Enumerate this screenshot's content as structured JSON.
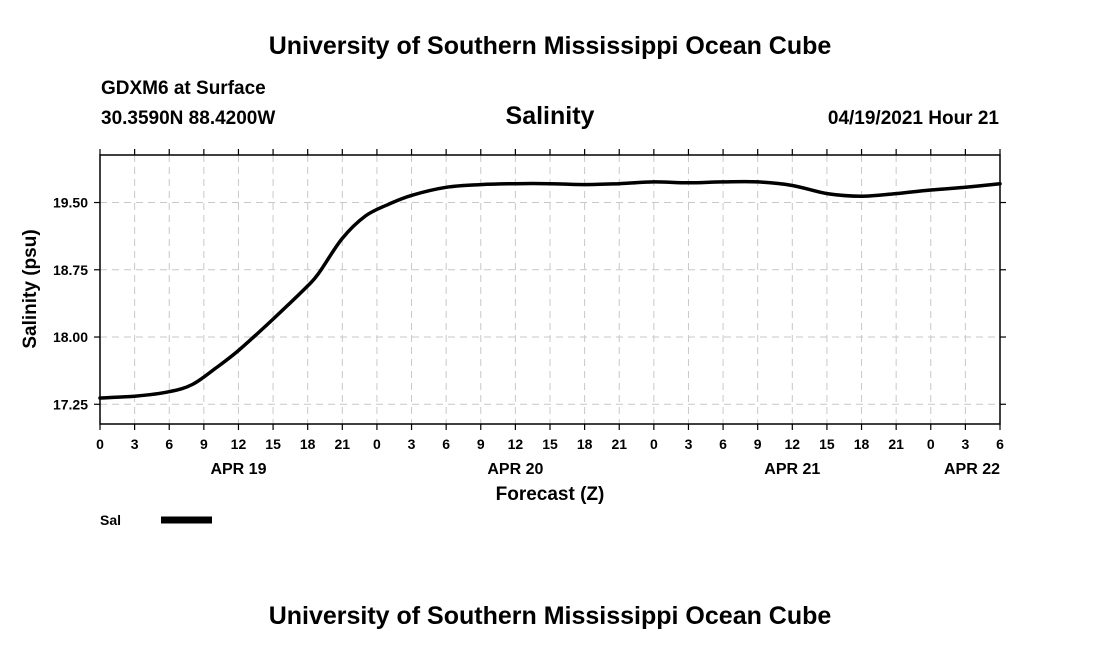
{
  "header": {
    "top_title": "University of Southern Mississippi Ocean Cube",
    "station": "GDXM6 at Surface",
    "coords": "30.3590N  88.4200W",
    "datetime": "04/19/2021 Hour 21",
    "bottom_title": "University of Southern Mississippi Ocean Cube"
  },
  "chart_data": {
    "type": "line",
    "title": "Salinity",
    "xlabel": "Forecast (Z)",
    "ylabel": "Salinity (psu)",
    "xlim": [
      0,
      78
    ],
    "ylim": [
      17.03,
      20.03
    ],
    "y_ticks": [
      17.25,
      18.0,
      18.75,
      19.5
    ],
    "y_tick_labels": [
      "17.25",
      "18.00",
      "18.75",
      "19.50"
    ],
    "x_ticks": [
      0,
      3,
      6,
      9,
      12,
      15,
      18,
      21,
      24,
      27,
      30,
      33,
      36,
      39,
      42,
      45,
      48,
      51,
      54,
      57,
      60,
      63,
      66,
      69,
      72,
      75,
      78
    ],
    "x_tick_labels": [
      "0",
      "3",
      "6",
      "9",
      "12",
      "15",
      "18",
      "21",
      "0",
      "3",
      "6",
      "9",
      "12",
      "15",
      "18",
      "21",
      "0",
      "3",
      "6",
      "9",
      "12",
      "15",
      "18",
      "21",
      "0",
      "3",
      "6"
    ],
    "day_labels": [
      {
        "x": 12,
        "label": "APR 19"
      },
      {
        "x": 36,
        "label": "APR 20"
      },
      {
        "x": 60,
        "label": "APR 21"
      },
      {
        "x": 78,
        "label": "APR 22"
      }
    ],
    "grid": true,
    "legend_position": "bottom-left",
    "series": [
      {
        "name": "Sal",
        "color": "#000000",
        "x": [
          0,
          3,
          6,
          8,
          10,
          12,
          15,
          18,
          19,
          21,
          23,
          25,
          27,
          30,
          33,
          36,
          39,
          42,
          45,
          48,
          51,
          54,
          57,
          60,
          63,
          66,
          69,
          72,
          75,
          78
        ],
        "values": [
          17.32,
          17.34,
          17.39,
          17.47,
          17.65,
          17.85,
          18.2,
          18.57,
          18.72,
          19.1,
          19.35,
          19.48,
          19.58,
          19.67,
          19.7,
          19.71,
          19.71,
          19.7,
          19.71,
          19.73,
          19.72,
          19.73,
          19.73,
          19.69,
          19.6,
          19.57,
          19.6,
          19.64,
          19.67,
          19.71
        ]
      }
    ]
  }
}
